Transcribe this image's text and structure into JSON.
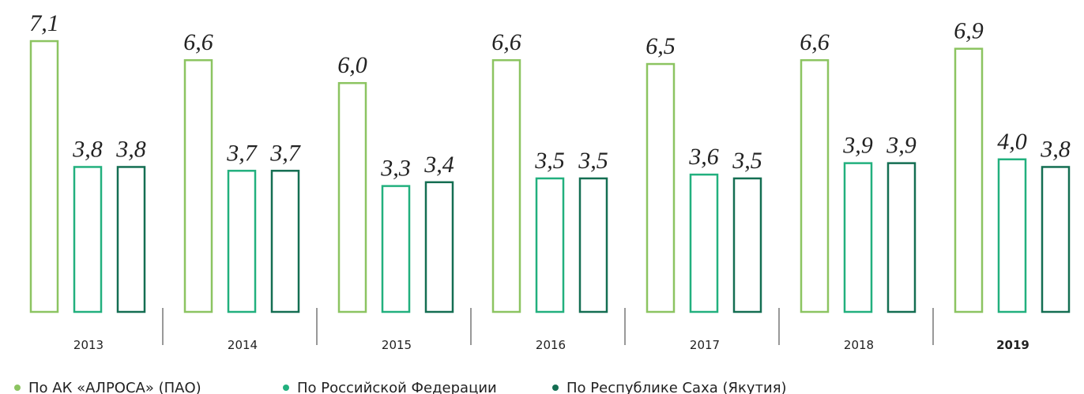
{
  "chart_data": {
    "type": "bar",
    "categories": [
      "2013",
      "2014",
      "2015",
      "2016",
      "2017",
      "2018",
      "2019"
    ],
    "series": [
      {
        "name": "По АК «АЛРОСА» (ПАО)",
        "color": "#8cc461",
        "values": [
          7.1,
          6.6,
          6.0,
          6.6,
          6.5,
          6.6,
          6.9
        ],
        "value_labels": [
          "7,1",
          "6,6",
          "6,0",
          "6,6",
          "6,5",
          "6,6",
          "6,9"
        ]
      },
      {
        "name": "По Российской Федерации",
        "color": "#22b07e",
        "values": [
          3.8,
          3.7,
          3.3,
          3.5,
          3.6,
          3.9,
          4.0
        ],
        "value_labels": [
          "3,8",
          "3,7",
          "3,3",
          "3,5",
          "3,6",
          "3,9",
          "4,0"
        ]
      },
      {
        "name": "По Республике Саха (Якутия)",
        "color": "#146e52",
        "values": [
          3.8,
          3.7,
          3.4,
          3.5,
          3.5,
          3.9,
          3.8
        ],
        "value_labels": [
          "3,8",
          "3,7",
          "3,4",
          "3,5",
          "3,5",
          "3,9",
          "3,8"
        ]
      }
    ],
    "ylim": [
      0,
      8
    ]
  }
}
